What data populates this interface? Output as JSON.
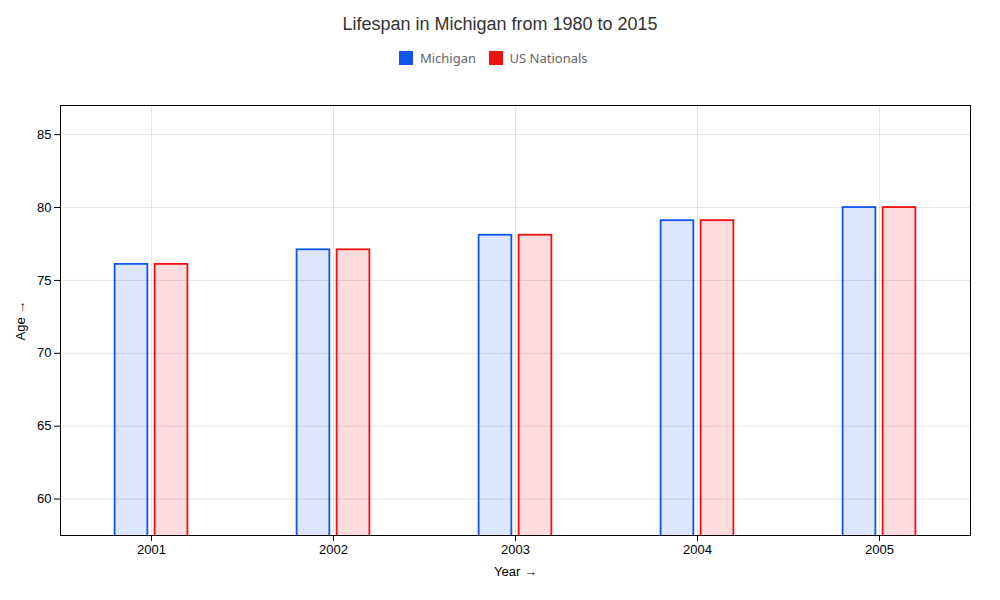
{
  "chart_data": {
    "type": "bar",
    "title": "Lifespan in Michigan from 1980 to 2015",
    "xlabel": "Year",
    "ylabel": "Age",
    "categories": [
      "2001",
      "2002",
      "2003",
      "2004",
      "2005"
    ],
    "series": [
      {
        "name": "Michigan",
        "color": "#1155ee",
        "values": [
          76.1,
          77.1,
          78.1,
          79.1,
          80.0
        ]
      },
      {
        "name": "US Nationals",
        "color": "#ee1111",
        "values": [
          76.1,
          77.1,
          78.1,
          79.1,
          80.0
        ]
      }
    ],
    "ylim": [
      57.5,
      87
    ],
    "yticks": [
      60,
      65,
      70,
      75,
      80,
      85
    ],
    "grid": true,
    "legend": "top"
  }
}
